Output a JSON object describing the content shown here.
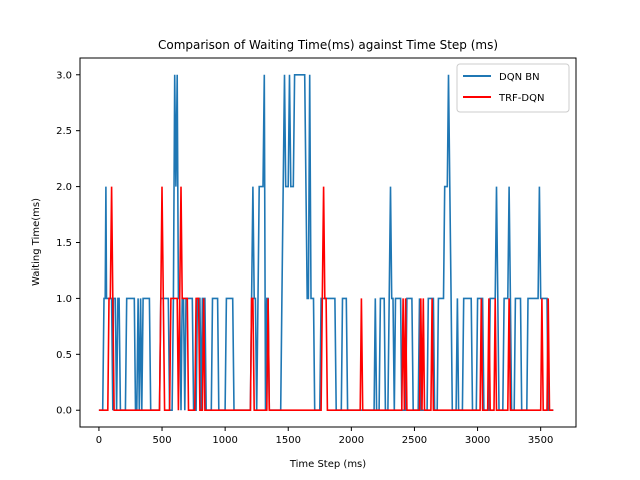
{
  "chart_data": {
    "type": "line",
    "title": "Comparison of Waiting Time(ms) against Time Step (ms)",
    "xlabel": "Time Step (ms)",
    "ylabel": "Waiting Time(ms)",
    "xlim": [
      -150,
      3780
    ],
    "ylim": [
      -0.15,
      3.15
    ],
    "x_ticks": [
      0,
      500,
      1000,
      1500,
      2000,
      2500,
      3000,
      3500
    ],
    "y_ticks": [
      "0.0",
      "0.5",
      "1.0",
      "1.5",
      "2.0",
      "2.5",
      "3.0"
    ],
    "grid": false,
    "legend_position": "upper right",
    "series": [
      {
        "name": "DQN BN",
        "color": "#1f77b4",
        "step": true,
        "points": [
          [
            0,
            0
          ],
          [
            30,
            0
          ],
          [
            40,
            1
          ],
          [
            50,
            1
          ],
          [
            55,
            2
          ],
          [
            60,
            1
          ],
          [
            70,
            1
          ],
          [
            80,
            1
          ],
          [
            100,
            1
          ],
          [
            110,
            0
          ],
          [
            115,
            1
          ],
          [
            130,
            1
          ],
          [
            140,
            0
          ],
          [
            150,
            1
          ],
          [
            160,
            1
          ],
          [
            170,
            0
          ],
          [
            210,
            0
          ],
          [
            220,
            1
          ],
          [
            280,
            1
          ],
          [
            290,
            0
          ],
          [
            300,
            0
          ],
          [
            310,
            1
          ],
          [
            320,
            0
          ],
          [
            330,
            1
          ],
          [
            340,
            0
          ],
          [
            350,
            1
          ],
          [
            400,
            1
          ],
          [
            410,
            0
          ],
          [
            450,
            0
          ],
          [
            480,
            0
          ],
          [
            490,
            1
          ],
          [
            550,
            1
          ],
          [
            560,
            0
          ],
          [
            580,
            0
          ],
          [
            590,
            1
          ],
          [
            600,
            3
          ],
          [
            610,
            2
          ],
          [
            620,
            3
          ],
          [
            625,
            2
          ],
          [
            630,
            1
          ],
          [
            640,
            1
          ],
          [
            650,
            0
          ],
          [
            660,
            1
          ],
          [
            670,
            1
          ],
          [
            680,
            0
          ],
          [
            690,
            1
          ],
          [
            740,
            1
          ],
          [
            750,
            0
          ],
          [
            770,
            0
          ],
          [
            780,
            1
          ],
          [
            800,
            1
          ],
          [
            810,
            0
          ],
          [
            820,
            1
          ],
          [
            840,
            1
          ],
          [
            850,
            0
          ],
          [
            890,
            0
          ],
          [
            900,
            1
          ],
          [
            940,
            1
          ],
          [
            950,
            0
          ],
          [
            1000,
            0
          ],
          [
            1010,
            1
          ],
          [
            1060,
            1
          ],
          [
            1070,
            0
          ],
          [
            1200,
            0
          ],
          [
            1210,
            1
          ],
          [
            1220,
            2
          ],
          [
            1230,
            1
          ],
          [
            1240,
            1
          ],
          [
            1250,
            0
          ],
          [
            1260,
            1
          ],
          [
            1270,
            2
          ],
          [
            1290,
            2
          ],
          [
            1300,
            2
          ],
          [
            1310,
            3
          ],
          [
            1320,
            0
          ],
          [
            1330,
            1
          ],
          [
            1340,
            1
          ],
          [
            1350,
            0
          ],
          [
            1440,
            0
          ],
          [
            1450,
            1
          ],
          [
            1460,
            2
          ],
          [
            1470,
            3
          ],
          [
            1480,
            2
          ],
          [
            1500,
            2
          ],
          [
            1510,
            3
          ],
          [
            1520,
            2
          ],
          [
            1540,
            2
          ],
          [
            1550,
            3
          ],
          [
            1620,
            3
          ],
          [
            1630,
            3
          ],
          [
            1650,
            1
          ],
          [
            1660,
            1
          ],
          [
            1670,
            3
          ],
          [
            1680,
            1
          ],
          [
            1700,
            1
          ],
          [
            1710,
            0
          ],
          [
            1750,
            0
          ],
          [
            1760,
            1
          ],
          [
            1870,
            1
          ],
          [
            1880,
            0
          ],
          [
            1920,
            0
          ],
          [
            1930,
            1
          ],
          [
            1960,
            1
          ],
          [
            1970,
            0
          ],
          [
            2180,
            0
          ],
          [
            2190,
            1
          ],
          [
            2200,
            0
          ],
          [
            2220,
            0
          ],
          [
            2230,
            1
          ],
          [
            2260,
            1
          ],
          [
            2270,
            0
          ],
          [
            2290,
            0
          ],
          [
            2300,
            1
          ],
          [
            2310,
            2
          ],
          [
            2320,
            1
          ],
          [
            2330,
            1
          ],
          [
            2340,
            0
          ],
          [
            2350,
            1
          ],
          [
            2390,
            1
          ],
          [
            2400,
            0
          ],
          [
            2430,
            0
          ],
          [
            2440,
            1
          ],
          [
            2480,
            1
          ],
          [
            2490,
            0
          ],
          [
            2530,
            0
          ],
          [
            2540,
            1
          ],
          [
            2550,
            0
          ],
          [
            2600,
            0
          ],
          [
            2610,
            1
          ],
          [
            2650,
            1
          ],
          [
            2660,
            0
          ],
          [
            2680,
            0
          ],
          [
            2690,
            1
          ],
          [
            2730,
            1
          ],
          [
            2740,
            2
          ],
          [
            2760,
            2
          ],
          [
            2770,
            3
          ],
          [
            2780,
            2
          ],
          [
            2790,
            1
          ],
          [
            2800,
            0
          ],
          [
            2830,
            0
          ],
          [
            2840,
            1
          ],
          [
            2850,
            0
          ],
          [
            2880,
            0
          ],
          [
            2890,
            1
          ],
          [
            2950,
            1
          ],
          [
            2960,
            0
          ],
          [
            2990,
            0
          ],
          [
            3000,
            1
          ],
          [
            3040,
            1
          ],
          [
            3050,
            0
          ],
          [
            3090,
            0
          ],
          [
            3100,
            1
          ],
          [
            3140,
            1
          ],
          [
            3150,
            2
          ],
          [
            3160,
            1
          ],
          [
            3170,
            0
          ],
          [
            3200,
            0
          ],
          [
            3210,
            1
          ],
          [
            3240,
            1
          ],
          [
            3250,
            2
          ],
          [
            3260,
            1
          ],
          [
            3270,
            0
          ],
          [
            3290,
            0
          ],
          [
            3300,
            1
          ],
          [
            3340,
            1
          ],
          [
            3350,
            0
          ],
          [
            3390,
            0
          ],
          [
            3400,
            1
          ],
          [
            3480,
            1
          ],
          [
            3490,
            2
          ],
          [
            3500,
            1
          ],
          [
            3550,
            1
          ],
          [
            3560,
            0
          ],
          [
            3600,
            0
          ]
        ]
      },
      {
        "name": "TRF-DQN",
        "color": "#ff0000",
        "step": true,
        "points": [
          [
            0,
            0
          ],
          [
            70,
            0
          ],
          [
            80,
            1
          ],
          [
            90,
            1
          ],
          [
            100,
            2
          ],
          [
            110,
            1
          ],
          [
            120,
            0
          ],
          [
            480,
            0
          ],
          [
            490,
            1
          ],
          [
            500,
            2
          ],
          [
            510,
            1
          ],
          [
            520,
            0
          ],
          [
            560,
            0
          ],
          [
            570,
            1
          ],
          [
            620,
            1
          ],
          [
            630,
            0
          ],
          [
            640,
            1
          ],
          [
            650,
            2
          ],
          [
            660,
            1
          ],
          [
            700,
            1
          ],
          [
            710,
            0
          ],
          [
            760,
            0
          ],
          [
            770,
            1
          ],
          [
            790,
            1
          ],
          [
            800,
            0
          ],
          [
            820,
            0
          ],
          [
            830,
            1
          ],
          [
            840,
            0
          ],
          [
            1200,
            0
          ],
          [
            1210,
            1
          ],
          [
            1220,
            1
          ],
          [
            1230,
            0
          ],
          [
            1330,
            0
          ],
          [
            1340,
            1
          ],
          [
            1350,
            0
          ],
          [
            1760,
            0
          ],
          [
            1770,
            1
          ],
          [
            1780,
            2
          ],
          [
            1790,
            1
          ],
          [
            1800,
            1
          ],
          [
            1810,
            0
          ],
          [
            2070,
            0
          ],
          [
            2080,
            1
          ],
          [
            2090,
            0
          ],
          [
            2400,
            0
          ],
          [
            2410,
            1
          ],
          [
            2420,
            0
          ],
          [
            2430,
            1
          ],
          [
            2440,
            0
          ],
          [
            2540,
            0
          ],
          [
            2550,
            1
          ],
          [
            2560,
            0
          ],
          [
            2570,
            1
          ],
          [
            2580,
            0
          ],
          [
            2630,
            0
          ],
          [
            2640,
            1
          ],
          [
            2650,
            0
          ],
          [
            3020,
            0
          ],
          [
            3030,
            1
          ],
          [
            3040,
            0
          ],
          [
            3080,
            0
          ],
          [
            3090,
            1
          ],
          [
            3100,
            0
          ],
          [
            3130,
            0
          ],
          [
            3140,
            1
          ],
          [
            3150,
            0
          ],
          [
            3240,
            0
          ],
          [
            3250,
            1
          ],
          [
            3260,
            0
          ],
          [
            3500,
            0
          ],
          [
            3510,
            1
          ],
          [
            3520,
            0
          ],
          [
            3550,
            0
          ],
          [
            3560,
            1
          ],
          [
            3570,
            0
          ],
          [
            3600,
            0
          ]
        ]
      }
    ]
  }
}
